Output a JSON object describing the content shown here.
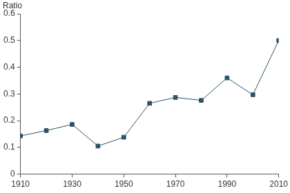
{
  "chart_data": {
    "type": "line",
    "ylabel": "Ratio",
    "x": [
      1910,
      1920,
      1930,
      1940,
      1950,
      1960,
      1970,
      1980,
      1990,
      2000,
      2010
    ],
    "values": [
      0.143,
      0.163,
      0.186,
      0.105,
      0.138,
      0.265,
      0.287,
      0.276,
      0.36,
      0.297,
      0.5
    ],
    "color": "#2b5366",
    "marker": "square",
    "line_style": "solid",
    "xlim": [
      1910,
      2010
    ],
    "xticks": [
      1910,
      1930,
      1950,
      1970,
      1990,
      2010
    ],
    "ylim": [
      0,
      0.6
    ],
    "yticks": [
      0,
      0.1,
      0.2,
      0.3,
      0.4,
      0.5,
      0.6
    ],
    "grid": false
  }
}
